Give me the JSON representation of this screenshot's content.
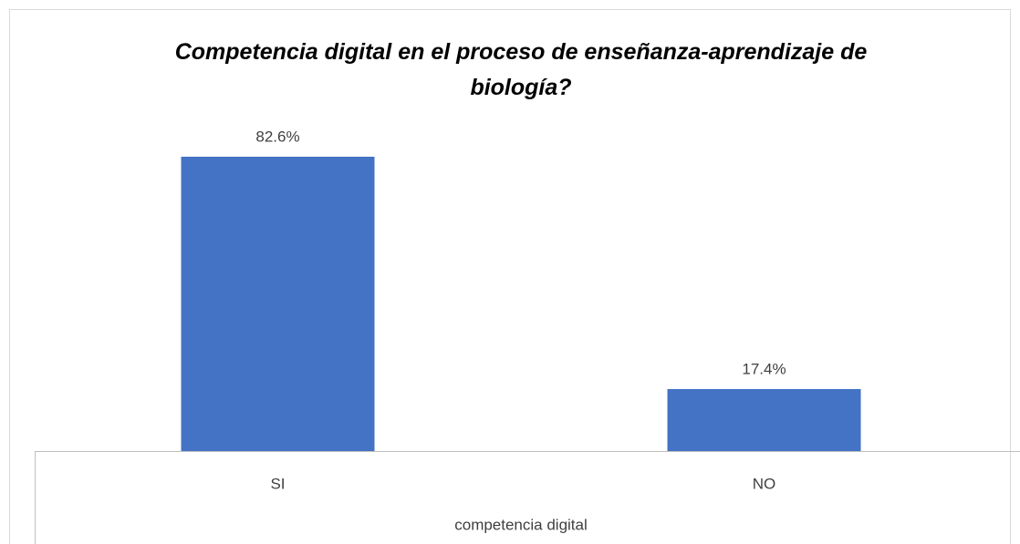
{
  "chart_data": {
    "type": "bar",
    "title": "Competencia digital en el proceso de enseñanza-aprendizaje de biología?",
    "x_label": "competencia digital",
    "categories": [
      "SI",
      "NO"
    ],
    "values": [
      82.6,
      17.4
    ],
    "value_labels": [
      "82.6%",
      "17.4%"
    ],
    "color": "#4472c4"
  }
}
